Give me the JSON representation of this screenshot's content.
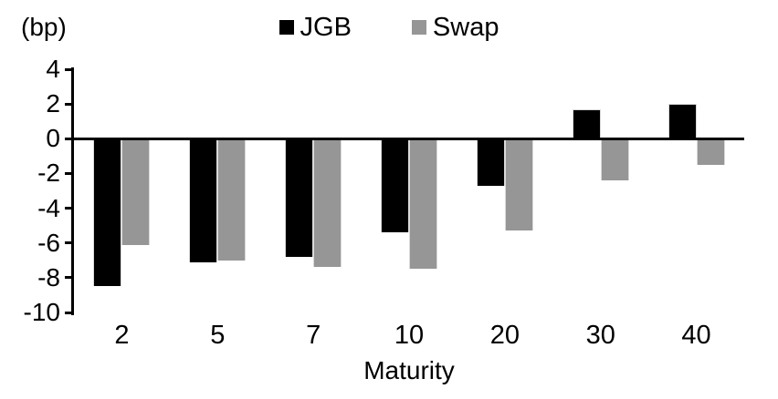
{
  "chart_data": {
    "type": "bar",
    "title": "",
    "unit_label": "(bp)",
    "xlabel": "Maturity",
    "categories": [
      "2",
      "5",
      "7",
      "10",
      "20",
      "30",
      "40"
    ],
    "series": [
      {
        "name": "JGB",
        "color": "#000000",
        "values": [
          -8.5,
          -7.1,
          -6.8,
          -5.4,
          -2.7,
          1.7,
          2.0
        ]
      },
      {
        "name": "Swap",
        "color": "#969696",
        "values": [
          -6.1,
          -7.0,
          -7.4,
          -7.5,
          -5.3,
          -2.4,
          -1.5
        ]
      }
    ],
    "y_axis": {
      "min": -10,
      "max": 4,
      "tick_step": 2,
      "ticks": [
        "4",
        "2",
        "0",
        "-2",
        "-4",
        "-6",
        "-8",
        "-10"
      ]
    },
    "legend_position": "top-center",
    "grid": false,
    "background_color": "#ffffff"
  }
}
